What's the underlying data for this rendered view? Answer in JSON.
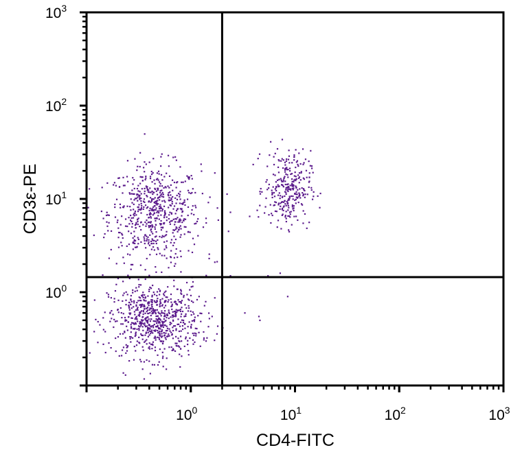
{
  "chart_data": {
    "type": "scatter",
    "title": "",
    "xlabel": "CD4-FITC",
    "ylabel": "CD3ε-PE",
    "xscale": "log",
    "yscale": "log",
    "xlim": [
      0.1,
      1000
    ],
    "ylim": [
      0.1,
      1000
    ],
    "x_ticks": [
      {
        "base": "10",
        "exp": "0",
        "value": 1
      },
      {
        "base": "10",
        "exp": "1",
        "value": 10
      },
      {
        "base": "10",
        "exp": "2",
        "value": 100
      },
      {
        "base": "10",
        "exp": "3",
        "value": 1000
      }
    ],
    "y_ticks": [
      {
        "base": "10",
        "exp": "0",
        "value": 1
      },
      {
        "base": "10",
        "exp": "1",
        "value": 10
      },
      {
        "base": "10",
        "exp": "2",
        "value": 100
      },
      {
        "base": "10",
        "exp": "3",
        "value": 1000
      }
    ],
    "quadrant_gates": {
      "x": 2.0,
      "y": 1.45
    },
    "grid": false,
    "legend": "none",
    "point_color": "#5b1a8c",
    "populations": [
      {
        "quadrant": "upper-left",
        "center": [
          0.45,
          7.0
        ],
        "spread_decades": [
          0.22,
          0.26
        ],
        "count": 620
      },
      {
        "quadrant": "lower-left",
        "center": [
          0.45,
          0.5
        ],
        "spread_decades": [
          0.22,
          0.2
        ],
        "count": 720
      },
      {
        "quadrant": "upper-right",
        "center": [
          8.5,
          13.0
        ],
        "spread_decades": [
          0.11,
          0.2
        ],
        "count": 300
      }
    ],
    "scattered_points": [
      [
        4.5,
        0.55
      ],
      [
        3.3,
        0.6
      ],
      [
        4.6,
        0.5
      ],
      [
        8.5,
        0.9
      ],
      [
        1.5,
        2.3
      ],
      [
        1.7,
        2.1
      ],
      [
        1.7,
        19
      ],
      [
        1.4,
        6.2
      ],
      [
        1.8,
        8.0
      ],
      [
        2.4,
        7.2
      ],
      [
        2.3,
        4.5
      ],
      [
        2.4,
        1.5
      ],
      [
        5.5,
        1.5
      ],
      [
        7.2,
        1.6
      ],
      [
        1.6,
        0.55
      ],
      [
        1.2,
        0.9
      ],
      [
        1.4,
        0.3
      ]
    ]
  }
}
